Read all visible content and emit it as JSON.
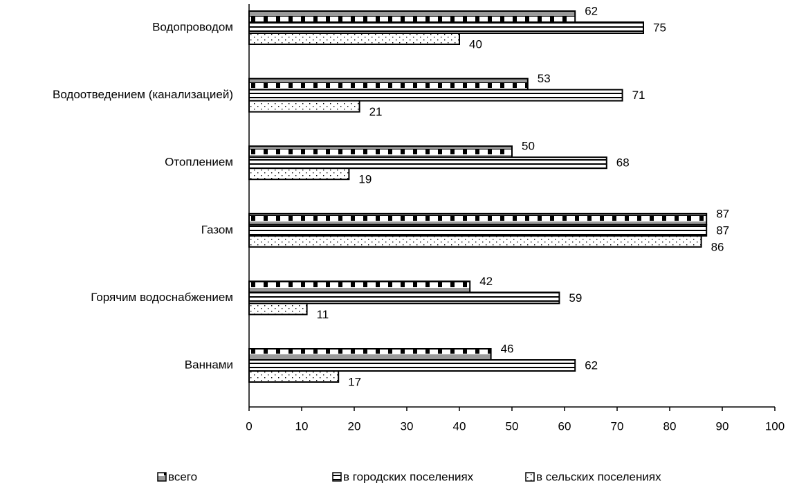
{
  "chart_data": {
    "type": "bar",
    "orientation": "horizontal",
    "categories": [
      "Водопроводом",
      "Водоотведением (канализацией)",
      "Отоплением",
      "Газом",
      "Горячим  водоснабжением",
      "Ваннами"
    ],
    "series": [
      {
        "name": "всего",
        "values": [
          62,
          53,
          50,
          87,
          42,
          46
        ]
      },
      {
        "name": "в городских поселениях",
        "values": [
          75,
          71,
          68,
          87,
          59,
          62
        ]
      },
      {
        "name": "в сельских поселениях",
        "values": [
          40,
          21,
          19,
          86,
          11,
          17
        ]
      }
    ],
    "xlim": [
      0,
      100
    ],
    "xticks": [
      "0",
      "10",
      "20",
      "30",
      "40",
      "50",
      "60",
      "70",
      "80",
      "90",
      "100"
    ],
    "grid": false,
    "legend_position": "bottom"
  }
}
